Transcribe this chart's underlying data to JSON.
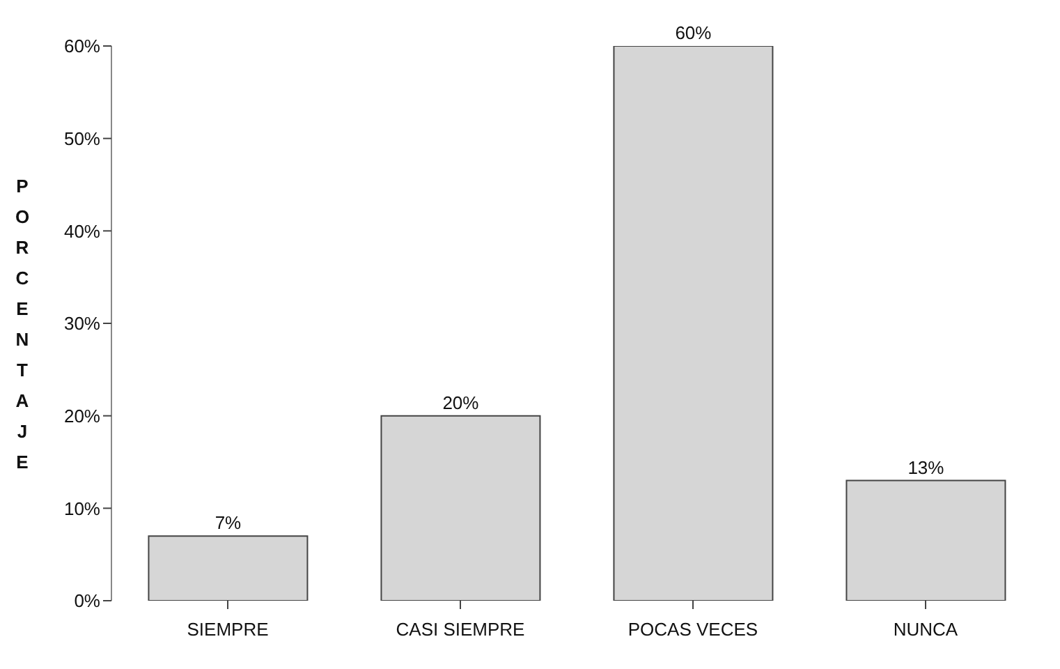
{
  "chart_data": {
    "type": "bar",
    "ylabel": "PORCENTAJE",
    "categories": [
      "SIEMPRE",
      "CASI SIEMPRE",
      "POCAS VECES",
      "NUNCA"
    ],
    "values": [
      7,
      20,
      60,
      13
    ],
    "color": "#d6d6d6",
    "value_labels": [
      "7%",
      "20%",
      "60%",
      "13%"
    ],
    "ylim": [
      0,
      60
    ],
    "yticks": [
      {
        "value": 0,
        "label": "0%"
      },
      {
        "value": 10,
        "label": "10%"
      },
      {
        "value": 20,
        "label": "20%"
      },
      {
        "value": 30,
        "label": "30%"
      },
      {
        "value": 40,
        "label": "40%"
      },
      {
        "value": 50,
        "label": "50%"
      },
      {
        "value": 60,
        "label": "60%"
      }
    ],
    "grid": false,
    "legend": false
  }
}
